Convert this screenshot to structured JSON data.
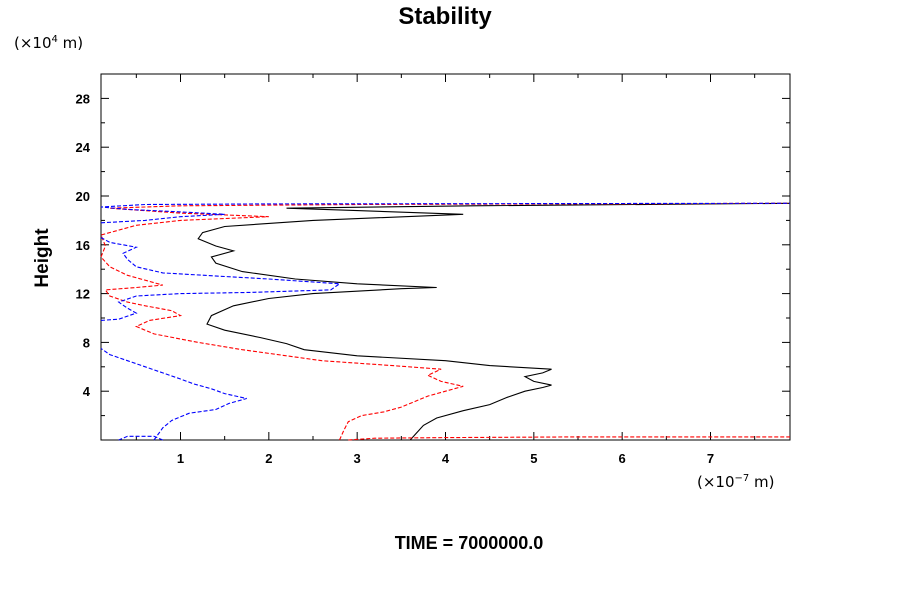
{
  "chart_data": {
    "type": "line",
    "title": "Stability",
    "ylabel": "Height",
    "xlabel": "",
    "y_unit": {
      "prefix": "(×10",
      "exp": "4",
      "suffix": " m)"
    },
    "x_unit": {
      "prefix": "(×10",
      "exp": "−7",
      "suffix": " m)"
    },
    "footer": "TIME = 7000000.0",
    "xlim": [
      0.1,
      7.9
    ],
    "ylim": [
      0.0,
      30.0
    ],
    "x_ticks": [
      1,
      2,
      3,
      4,
      5,
      6,
      7
    ],
    "y_ticks": [
      4,
      8,
      12,
      16,
      20,
      24,
      28
    ],
    "grid": false,
    "series": [
      {
        "color": "#000000",
        "dash": "solid",
        "points": [
          [
            3.6,
            0.0
          ],
          [
            3.65,
            0.4
          ],
          [
            3.75,
            1.2
          ],
          [
            3.9,
            1.8
          ],
          [
            4.2,
            2.4
          ],
          [
            4.5,
            2.9
          ],
          [
            4.7,
            3.5
          ],
          [
            4.9,
            4.0
          ],
          [
            5.1,
            4.3
          ],
          [
            5.2,
            4.5
          ],
          [
            5.0,
            4.8
          ],
          [
            4.9,
            5.2
          ],
          [
            5.1,
            5.5
          ],
          [
            5.2,
            5.8
          ],
          [
            4.5,
            6.1
          ],
          [
            4.0,
            6.5
          ],
          [
            3.0,
            6.9
          ],
          [
            2.4,
            7.4
          ],
          [
            2.2,
            7.9
          ],
          [
            1.9,
            8.4
          ],
          [
            1.5,
            9.0
          ],
          [
            1.3,
            9.5
          ],
          [
            1.35,
            10.2
          ],
          [
            1.6,
            11.0
          ],
          [
            2.0,
            11.6
          ],
          [
            2.5,
            12.0
          ],
          [
            3.5,
            12.4
          ],
          [
            3.9,
            12.5
          ],
          [
            3.0,
            12.8
          ],
          [
            2.3,
            13.2
          ],
          [
            1.7,
            13.8
          ],
          [
            1.4,
            14.5
          ],
          [
            1.35,
            15.0
          ],
          [
            1.6,
            15.5
          ],
          [
            1.4,
            15.9
          ],
          [
            1.2,
            16.5
          ],
          [
            1.25,
            17.0
          ],
          [
            1.5,
            17.5
          ],
          [
            2.5,
            18.0
          ],
          [
            4.2,
            18.5
          ],
          [
            3.0,
            18.8
          ],
          [
            2.2,
            19.0
          ],
          [
            4.3,
            19.2
          ],
          [
            7.9,
            19.4
          ]
        ]
      },
      {
        "color": "#ff0000",
        "dash": "dashed",
        "points": [
          [
            2.8,
            0.0
          ],
          [
            2.85,
            0.8
          ],
          [
            2.9,
            1.5
          ],
          [
            3.05,
            2.0
          ],
          [
            3.3,
            2.3
          ],
          [
            3.5,
            2.7
          ],
          [
            3.8,
            3.6
          ],
          [
            4.2,
            4.4
          ],
          [
            3.95,
            4.8
          ],
          [
            3.8,
            5.3
          ],
          [
            3.95,
            5.8
          ],
          [
            3.4,
            6.1
          ],
          [
            2.6,
            6.5
          ],
          [
            2.2,
            6.9
          ],
          [
            1.7,
            7.4
          ],
          [
            1.2,
            8.0
          ],
          [
            0.7,
            8.7
          ],
          [
            0.5,
            9.3
          ],
          [
            0.65,
            9.8
          ],
          [
            1.0,
            10.2
          ],
          [
            0.9,
            10.6
          ],
          [
            0.6,
            11.0
          ],
          [
            0.4,
            11.3
          ],
          [
            0.2,
            11.8
          ],
          [
            0.15,
            12.3
          ],
          [
            0.5,
            12.5
          ],
          [
            0.8,
            12.7
          ],
          [
            0.4,
            13.5
          ],
          [
            0.2,
            14.2
          ],
          [
            0.1,
            15.0
          ],
          [
            0.15,
            15.9
          ],
          [
            0.1,
            16.8
          ],
          [
            0.5,
            17.6
          ],
          [
            1.0,
            18.0
          ],
          [
            2.0,
            18.3
          ],
          [
            1.0,
            18.6
          ],
          [
            0.2,
            19.0
          ],
          [
            1.0,
            19.2
          ],
          [
            3.0,
            19.3
          ],
          [
            7.9,
            19.4
          ]
        ]
      },
      {
        "color": "#0000ff",
        "dash": "dashed",
        "points": [
          [
            0.8,
            0.0
          ],
          [
            0.7,
            0.3
          ],
          [
            0.4,
            0.3
          ],
          [
            0.3,
            0.0
          ]
        ],
        "note_hidden": false
      },
      {
        "color": "#0000ff",
        "dash": "dashed",
        "points": [
          [
            0.7,
            0.0
          ],
          [
            0.8,
            1.0
          ],
          [
            0.9,
            1.6
          ],
          [
            1.0,
            1.9
          ],
          [
            1.1,
            2.2
          ],
          [
            1.4,
            2.5
          ],
          [
            1.55,
            3.0
          ],
          [
            1.75,
            3.4
          ],
          [
            1.5,
            3.8
          ],
          [
            1.35,
            4.2
          ],
          [
            1.15,
            4.6
          ],
          [
            1.0,
            5.0
          ],
          [
            0.8,
            5.5
          ],
          [
            0.6,
            6.0
          ],
          [
            0.4,
            6.5
          ],
          [
            0.2,
            7.0
          ],
          [
            0.1,
            7.5
          ]
        ]
      },
      {
        "color": "#0000ff",
        "dash": "dashed",
        "points": [
          [
            0.1,
            9.8
          ],
          [
            0.3,
            9.9
          ],
          [
            0.5,
            10.4
          ],
          [
            0.4,
            10.8
          ],
          [
            0.3,
            11.3
          ],
          [
            0.5,
            11.8
          ],
          [
            1.0,
            12.0
          ],
          [
            1.8,
            12.1
          ],
          [
            2.7,
            12.3
          ],
          [
            2.8,
            12.8
          ],
          [
            2.0,
            13.2
          ],
          [
            1.5,
            13.4
          ],
          [
            0.8,
            13.7
          ],
          [
            0.5,
            14.2
          ],
          [
            0.4,
            14.8
          ],
          [
            0.35,
            15.3
          ],
          [
            0.5,
            15.8
          ],
          [
            0.2,
            16.2
          ],
          [
            0.1,
            16.6
          ]
        ]
      },
      {
        "color": "#0000ff",
        "dash": "dashed",
        "points": [
          [
            0.1,
            17.8
          ],
          [
            0.6,
            18.0
          ],
          [
            1.0,
            18.3
          ],
          [
            1.5,
            18.5
          ],
          [
            1.0,
            18.7
          ],
          [
            0.4,
            18.9
          ],
          [
            0.1,
            19.1
          ],
          [
            0.6,
            19.3
          ],
          [
            2.0,
            19.35
          ],
          [
            7.9,
            19.4
          ]
        ]
      },
      {
        "color": "#ff0000",
        "dash": "dashed",
        "points": [
          [
            2.9,
            0.0
          ],
          [
            3.2,
            0.15
          ],
          [
            4.0,
            0.2
          ],
          [
            5.5,
            0.25
          ],
          [
            7.9,
            0.25
          ]
        ]
      }
    ]
  }
}
